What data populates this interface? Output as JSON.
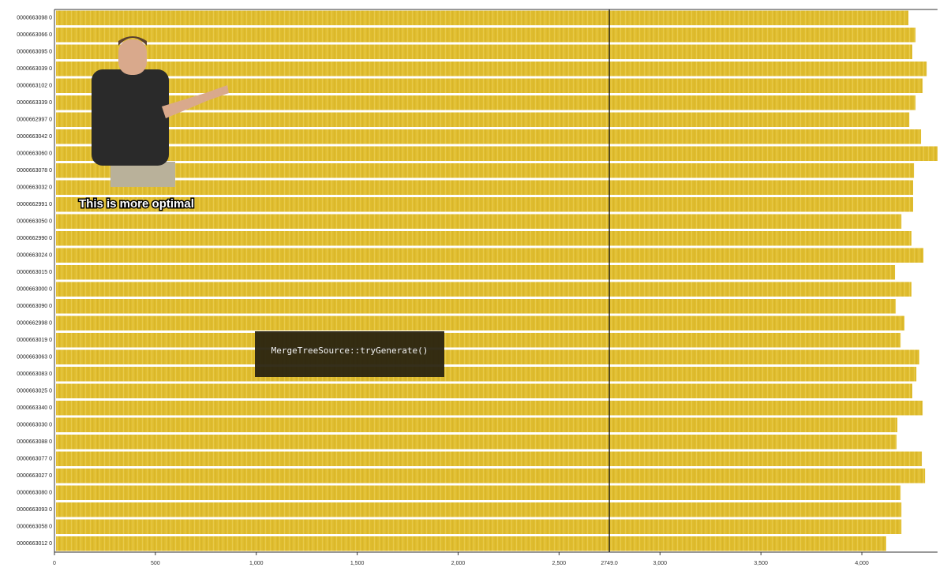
{
  "chart_data": {
    "type": "timeline",
    "categories": [
      "0000663098 0",
      "0000663066 0",
      "0000663095 0",
      "0000663039 0",
      "0000663102 0",
      "0000663339 0",
      "0000662997 0",
      "0000663042 0",
      "0000663060 0",
      "0000663078 0",
      "0000663032 0",
      "0000662991 0",
      "0000663050 0",
      "0000662990 0",
      "0000663024 0",
      "0000663015 0",
      "0000663000 0",
      "0000663090 0",
      "0000662998 0",
      "0000663019 0",
      "0000663063 0",
      "0000663083 0",
      "0000663025 0",
      "0000663340 0",
      "0000663030 0",
      "0000663088 0",
      "0000663077 0",
      "0000663027 0",
      "0000663080 0",
      "0000663093 0",
      "0000663058 0",
      "0000663012 0"
    ],
    "values": [
      4231,
      4266,
      4250,
      4321,
      4301,
      4266,
      4235,
      4293,
      4375,
      4258,
      4254,
      4254,
      4196,
      4246,
      4305,
      4164,
      4246,
      4168,
      4211,
      4192,
      4285,
      4270,
      4250,
      4301,
      4176,
      4172,
      4297,
      4313,
      4192,
      4196,
      4196,
      4121
    ],
    "color": "#e0bd2f",
    "xlim": [
      0,
      4375
    ],
    "xticks": [
      0,
      500,
      {
        "value": 1000,
        "label": "1,000"
      },
      {
        "value": 1500,
        "label": "1,500"
      },
      {
        "value": 2000,
        "label": "2,000"
      },
      {
        "value": 2500,
        "label": "2,500"
      },
      {
        "value": 3000,
        "label": "3,000"
      },
      {
        "value": 3500,
        "label": "3,500"
      },
      {
        "value": 4000,
        "label": "4,000"
      }
    ],
    "cursor": {
      "value": 2749,
      "label": "2749.0"
    },
    "tooltip": "MergeTreeSource::tryGenerate()",
    "caption": "This is more optimal"
  }
}
